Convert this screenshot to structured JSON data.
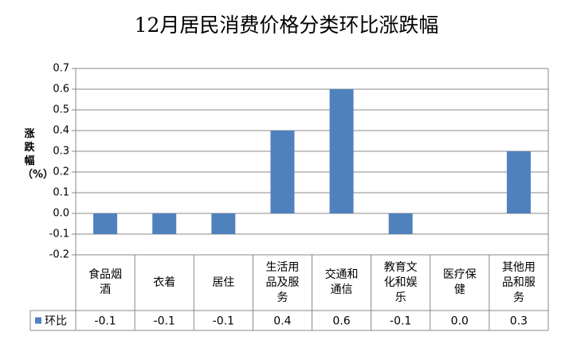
{
  "chart_data": {
    "type": "bar",
    "title": "12月居民消费价格分类环比涨跌幅",
    "y_label": "涨跌幅（%）",
    "categories": [
      "食品烟酒",
      "衣着",
      "居住",
      "生活用品及服务",
      "交通和通信",
      "教育文化和娱乐",
      "医疗保健",
      "其他用品和服务"
    ],
    "series": [
      {
        "name": "环比",
        "color": "#4f81bd",
        "values": [
          -0.1,
          -0.1,
          -0.1,
          0.4,
          0.6,
          -0.1,
          0,
          0.3
        ],
        "value_labels": [
          "-0.1",
          "-0.1",
          "-0.1",
          "0.4",
          "0.6",
          "-0.1",
          "0.0",
          "0.3"
        ]
      }
    ],
    "ylim": [
      -0.2,
      0.7
    ],
    "yticks": [
      -0.2,
      -0.1,
      {
        "value": 0,
        "label": "0.0"
      },
      0.1,
      0.2,
      0.3,
      0.4,
      0.5,
      0.6,
      0.7
    ],
    "grid": true
  }
}
